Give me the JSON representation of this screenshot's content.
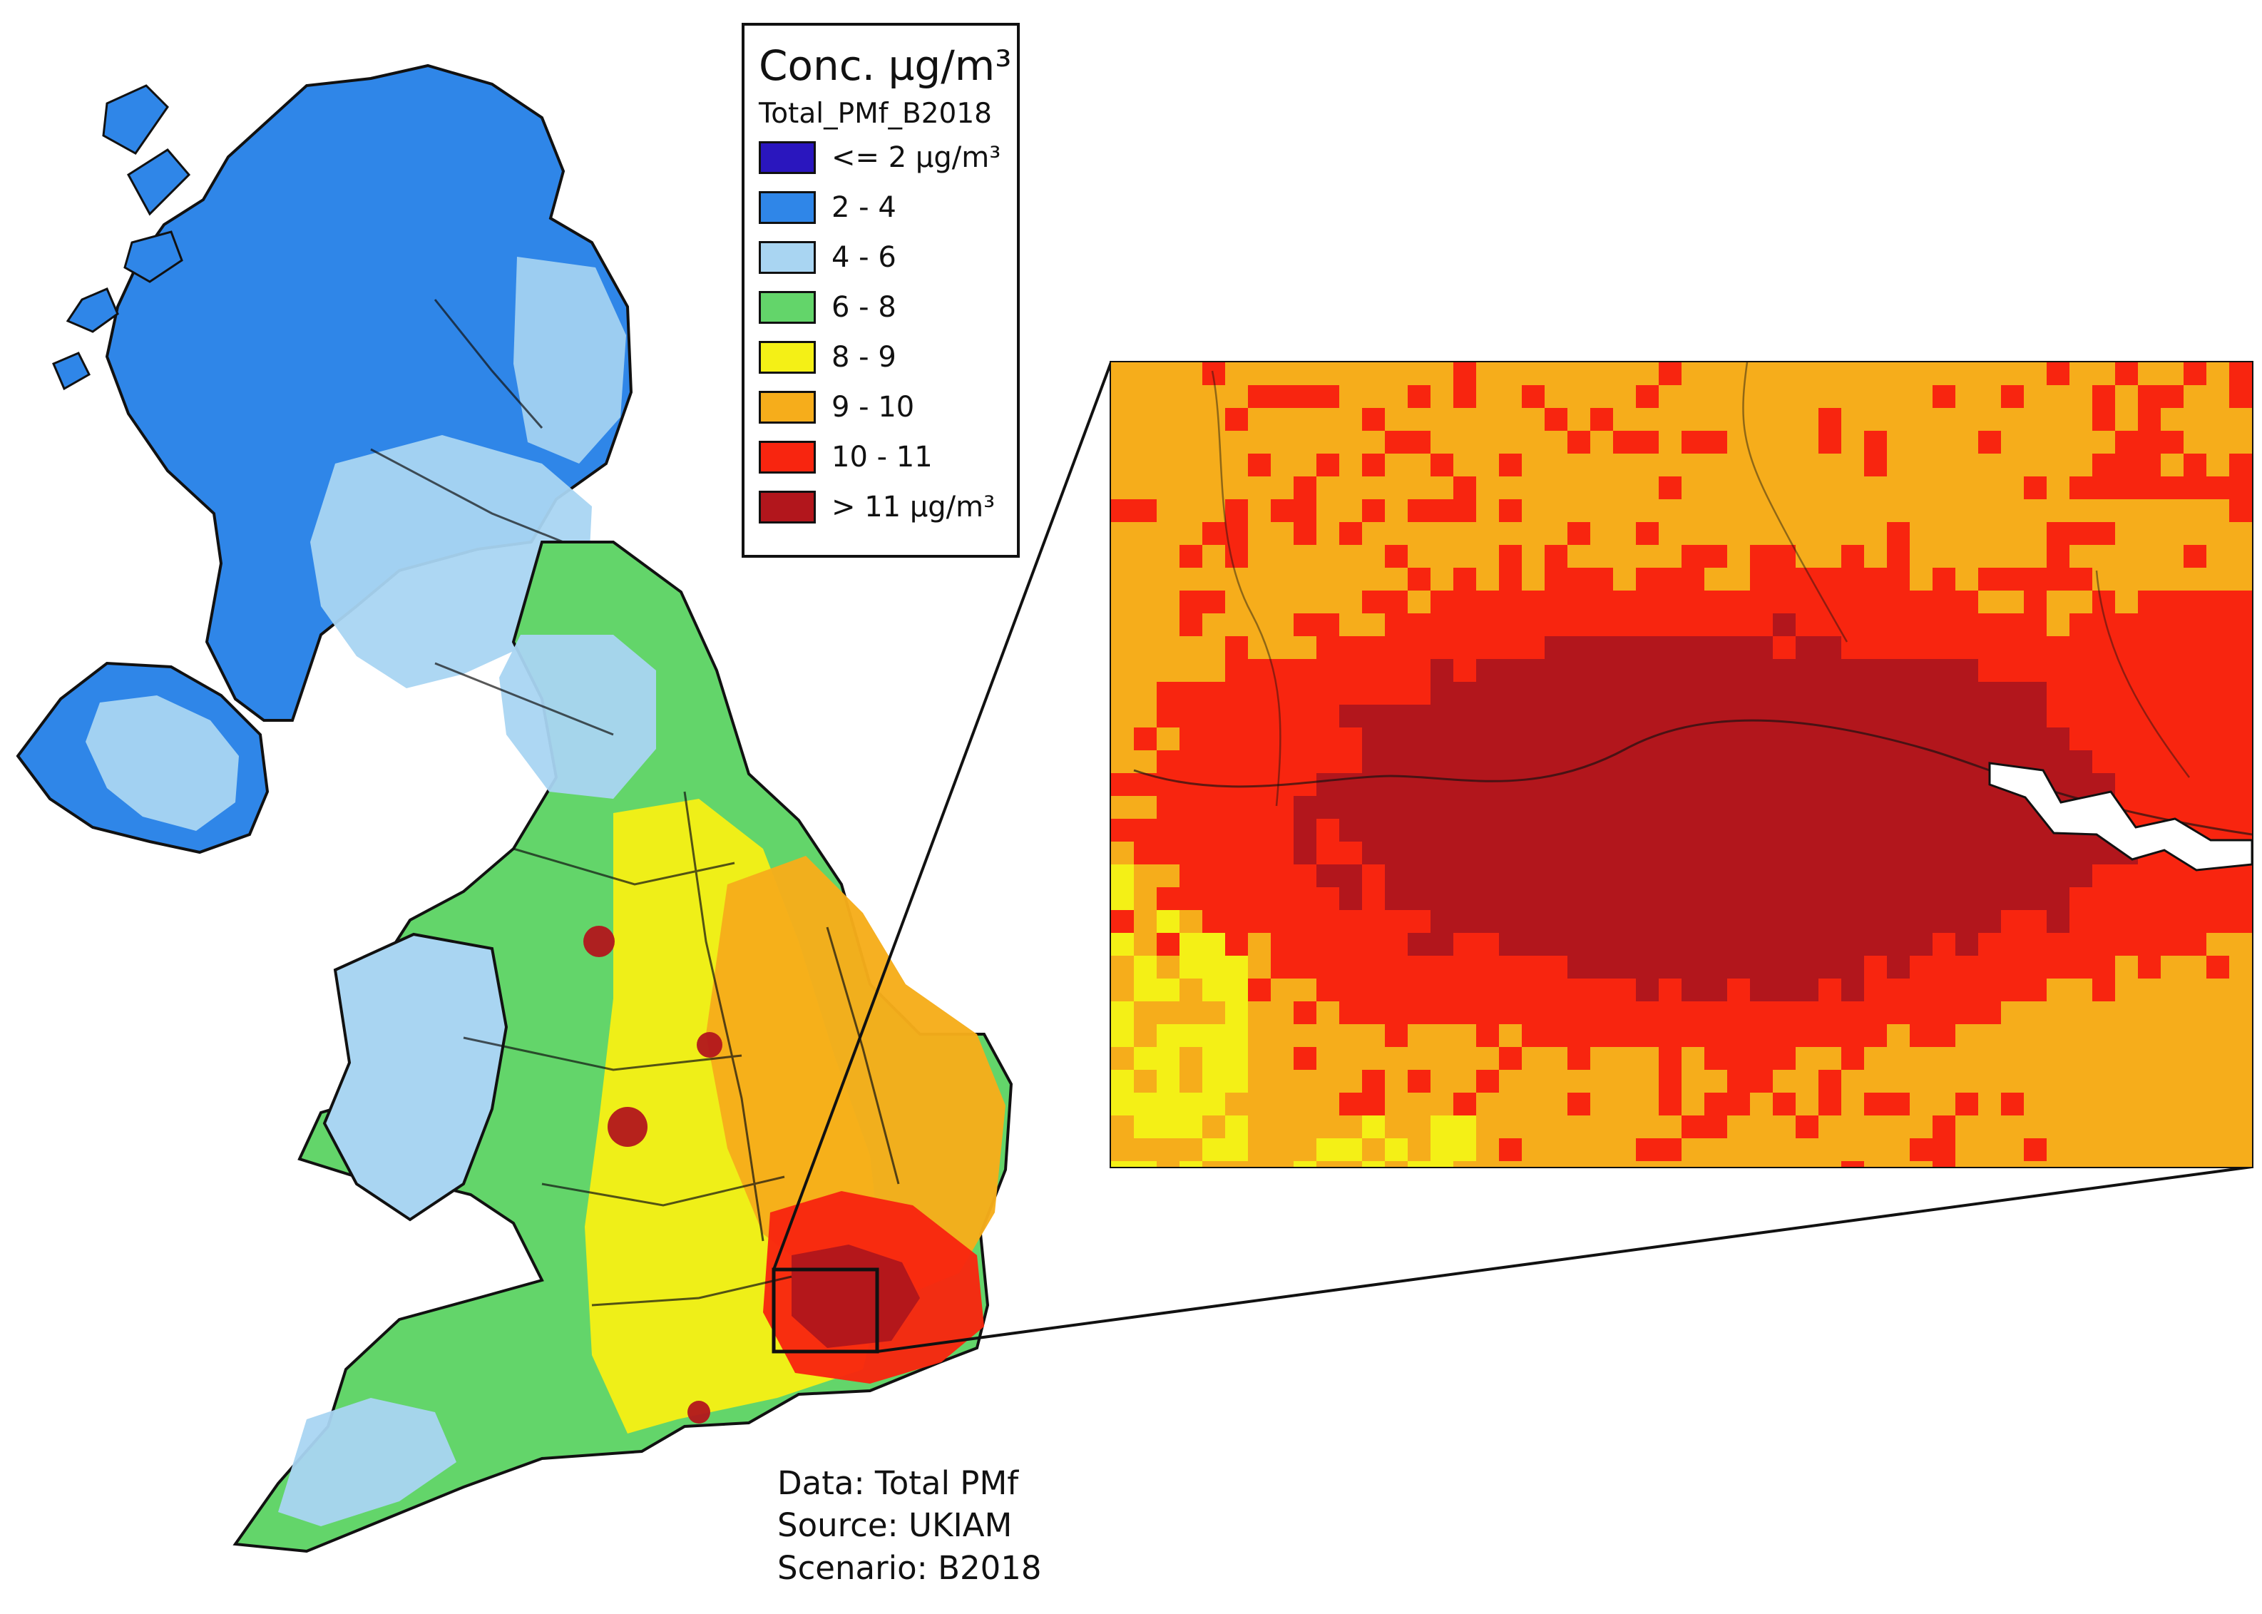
{
  "legend": {
    "title": "Conc. µg/m³",
    "subtitle": "Total_PMf_B2018",
    "items": [
      {
        "label": "<= 2 µg/m³",
        "color": "#2a16be"
      },
      {
        "label": "2 - 4",
        "color": "#2f86e8"
      },
      {
        "label": "4 - 6",
        "color": "#a9d5f2"
      },
      {
        "label": "6 - 8",
        "color": "#63d56a"
      },
      {
        "label": "8 - 9",
        "color": "#f4f016"
      },
      {
        "label": "9 - 10",
        "color": "#f6ad1b"
      },
      {
        "label": "10 - 11",
        "color": "#f8250f"
      },
      {
        "label": "> 11 µg/m³",
        "color": "#b2161c"
      }
    ]
  },
  "metadata": {
    "data": "Data: Total PMf",
    "source": "Source: UKIAM",
    "scenario": "Scenario: B2018"
  },
  "colors": {
    "map_stroke": "#111111",
    "water_white": "#ffffff"
  }
}
